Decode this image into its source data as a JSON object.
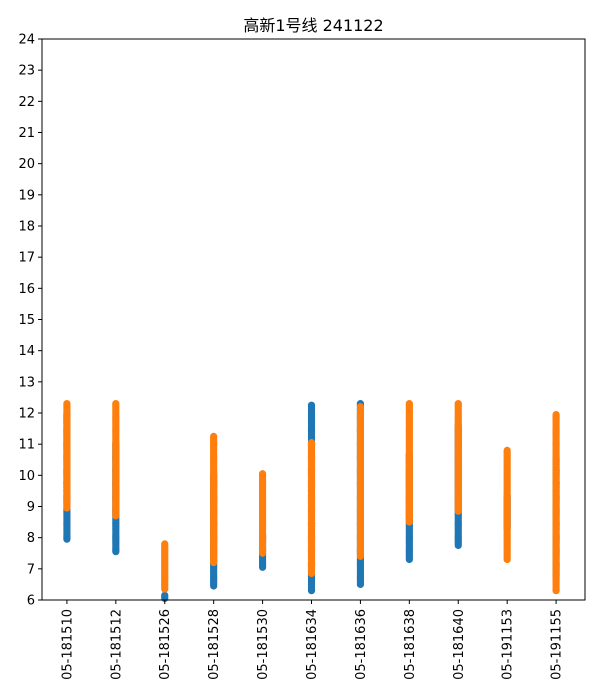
{
  "chart_data": {
    "type": "scatter",
    "title": "高新1号线  241122",
    "xlabel": "",
    "ylabel": "",
    "ylim": [
      6,
      24
    ],
    "yticks": [
      6,
      7,
      8,
      9,
      10,
      11,
      12,
      13,
      14,
      15,
      16,
      17,
      18,
      19,
      20,
      21,
      22,
      23,
      24
    ],
    "categories": [
      "05-181510",
      "05-181512",
      "05-181526",
      "05-181528",
      "05-181530",
      "05-181634",
      "05-181636",
      "05-181638",
      "05-181640",
      "05-191153",
      "05-191155"
    ],
    "grid": false,
    "legend": "none",
    "series": [
      {
        "color": "#1f77b4",
        "ranges": [
          [
            7.95,
            12.0
          ],
          [
            7.55,
            11.0
          ],
          [
            6.05,
            6.15
          ],
          [
            6.45,
            10.0
          ],
          [
            7.05,
            8.05
          ],
          [
            6.3,
            12.25
          ],
          [
            6.5,
            12.3
          ],
          [
            7.3,
            10.7
          ],
          [
            7.75,
            11.6
          ],
          [
            8.3,
            9.35
          ],
          [
            6.8,
            10.5
          ]
        ]
      },
      {
        "color": "#ff7f0e",
        "ranges": [
          [
            8.95,
            12.3
          ],
          [
            8.7,
            12.3
          ],
          [
            6.35,
            7.8
          ],
          [
            7.2,
            11.25
          ],
          [
            7.5,
            10.05
          ],
          [
            6.85,
            11.05
          ],
          [
            7.4,
            12.2
          ],
          [
            8.5,
            12.3
          ],
          [
            8.85,
            12.3
          ],
          [
            7.3,
            10.8
          ],
          [
            6.3,
            11.95
          ]
        ]
      }
    ]
  }
}
